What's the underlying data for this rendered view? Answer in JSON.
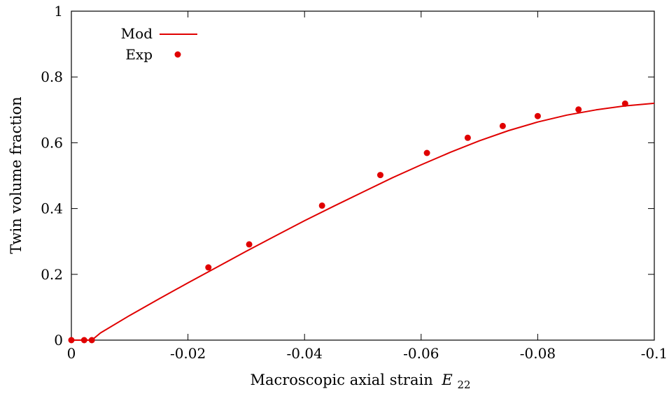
{
  "chart_data": {
    "type": "line",
    "title": "",
    "xlabel": "Macroscopic axial strain",
    "xlabel_symbol": "E",
    "xlabel_subscript": "22",
    "ylabel": "Twin volume fraction",
    "xlim": [
      0,
      -0.1
    ],
    "ylim": [
      0,
      1
    ],
    "grid": false,
    "legend_position": "top-left",
    "x_ticks": [
      "0",
      "-0.02",
      "-0.04",
      "-0.06",
      "-0.08",
      "-0.1"
    ],
    "x_tick_values": [
      0,
      -0.02,
      -0.04,
      -0.06,
      -0.08,
      -0.1
    ],
    "y_ticks": [
      "0",
      "0.2",
      "0.4",
      "0.6",
      "0.8",
      "1"
    ],
    "y_tick_values": [
      0,
      0.2,
      0.4,
      0.6,
      0.8,
      1
    ],
    "series": [
      {
        "name": "Mod",
        "style": "line",
        "color": "#e00000",
        "x": [
          0,
          -0.0035,
          -0.005,
          -0.01,
          -0.015,
          -0.02,
          -0.025,
          -0.03,
          -0.035,
          -0.04,
          -0.045,
          -0.05,
          -0.055,
          -0.06,
          -0.065,
          -0.07,
          -0.075,
          -0.08,
          -0.085,
          -0.09,
          -0.095,
          -0.1
        ],
        "y": [
          0,
          0,
          0.022,
          0.075,
          0.125,
          0.174,
          0.222,
          0.27,
          0.317,
          0.363,
          0.407,
          0.45,
          0.493,
          0.533,
          0.571,
          0.606,
          0.637,
          0.663,
          0.684,
          0.7,
          0.712,
          0.72
        ]
      },
      {
        "name": "Exp",
        "style": "scatter",
        "color": "#e00000",
        "x": [
          0,
          -0.0022,
          -0.0035,
          -0.0235,
          -0.0305,
          -0.043,
          -0.053,
          -0.061,
          -0.068,
          -0.074,
          -0.08,
          -0.087,
          -0.095
        ],
        "y": [
          0,
          0,
          0,
          0.221,
          0.291,
          0.409,
          0.502,
          0.569,
          0.615,
          0.651,
          0.681,
          0.701,
          0.719
        ]
      }
    ]
  }
}
